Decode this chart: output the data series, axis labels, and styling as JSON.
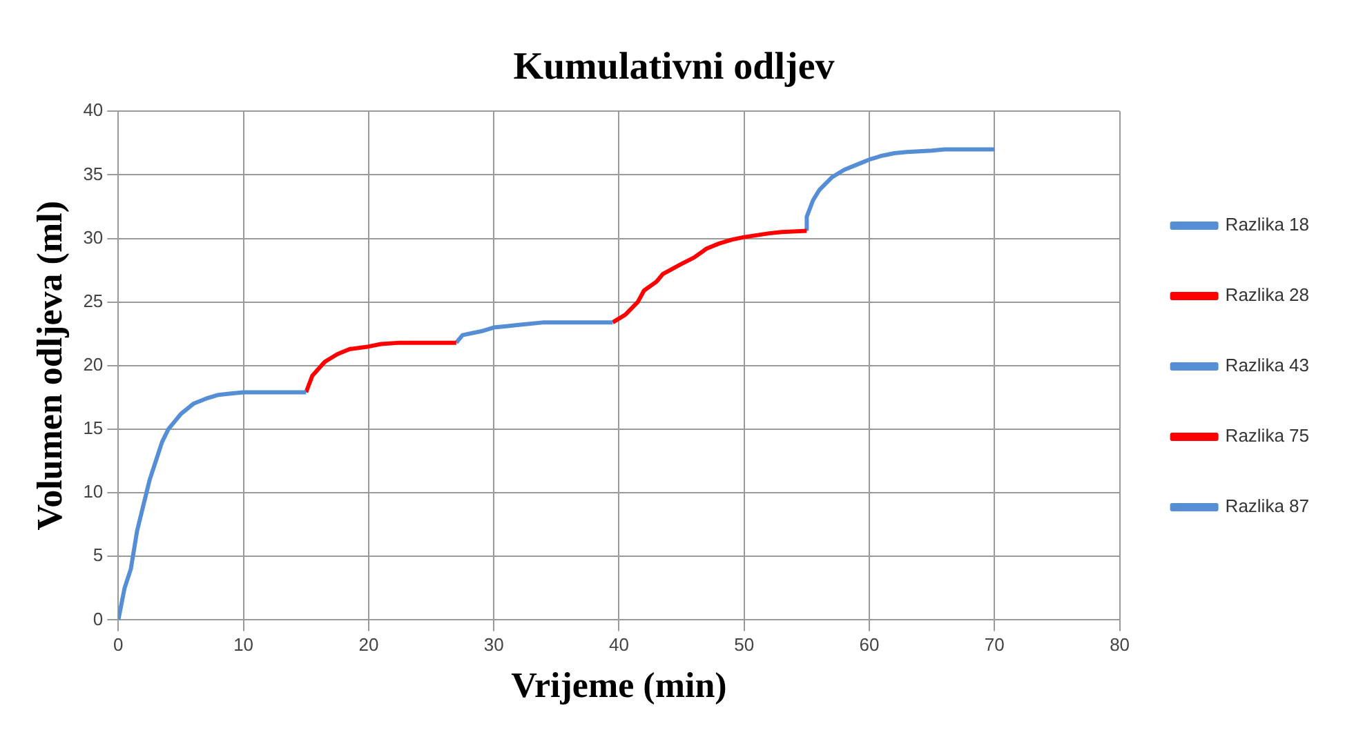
{
  "chart_data": {
    "type": "line",
    "title": "Kumulativni odljev",
    "xlabel": "Vrijeme (min)",
    "ylabel": "Volumen odljeva (ml)",
    "xlim": [
      0,
      80
    ],
    "xticks": [
      0,
      10,
      20,
      30,
      40,
      50,
      60,
      70,
      80
    ],
    "ylim": [
      0,
      40
    ],
    "yticks": [
      0,
      5,
      10,
      15,
      20,
      25,
      30,
      35,
      40
    ],
    "grid": true,
    "legend": "right",
    "marker": "none",
    "line_style": "solid",
    "series": [
      {
        "name": "Razlika 18",
        "color": "#558ed5",
        "x": [
          0,
          0.5,
          1,
          1.5,
          2,
          2.5,
          3,
          3.5,
          4,
          5,
          6,
          7,
          8,
          9,
          10,
          15
        ],
        "values": [
          0,
          2.5,
          4,
          7,
          9,
          11,
          12.5,
          14,
          15,
          16.2,
          17,
          17.4,
          17.7,
          17.8,
          17.9,
          17.9
        ]
      },
      {
        "name": "Razlika 28",
        "color": "#ff0000",
        "x": [
          15,
          15.5,
          16.5,
          17.5,
          18.5,
          20,
          21,
          22.5,
          27
        ],
        "values": [
          17.9,
          19.2,
          20.3,
          20.9,
          21.3,
          21.5,
          21.7,
          21.8,
          21.8
        ]
      },
      {
        "name": "Razlika 43",
        "color": "#558ed5",
        "x": [
          27,
          27.5,
          29,
          30,
          31,
          32,
          34,
          39.5
        ],
        "values": [
          21.8,
          22.4,
          22.7,
          23,
          23.1,
          23.2,
          23.4,
          23.4
        ]
      },
      {
        "name": "Razlika 75",
        "color": "#ff0000",
        "x": [
          39.5,
          40.5,
          41.5,
          42,
          43,
          43.5,
          45,
          46,
          47,
          48,
          49,
          50,
          52,
          53,
          55
        ],
        "values": [
          23.4,
          24,
          25,
          25.9,
          26.6,
          27.2,
          28,
          28.5,
          29.2,
          29.6,
          29.9,
          30.1,
          30.4,
          30.5,
          30.6
        ]
      },
      {
        "name": "Razlika 87",
        "color": "#558ed5",
        "x": [
          55,
          55,
          55.5,
          56,
          57,
          58,
          59,
          60,
          61,
          62,
          63,
          65,
          66,
          70
        ],
        "values": [
          30.6,
          31.7,
          33,
          33.8,
          34.8,
          35.4,
          35.8,
          36.2,
          36.5,
          36.7,
          36.8,
          36.9,
          37,
          37
        ]
      }
    ]
  }
}
